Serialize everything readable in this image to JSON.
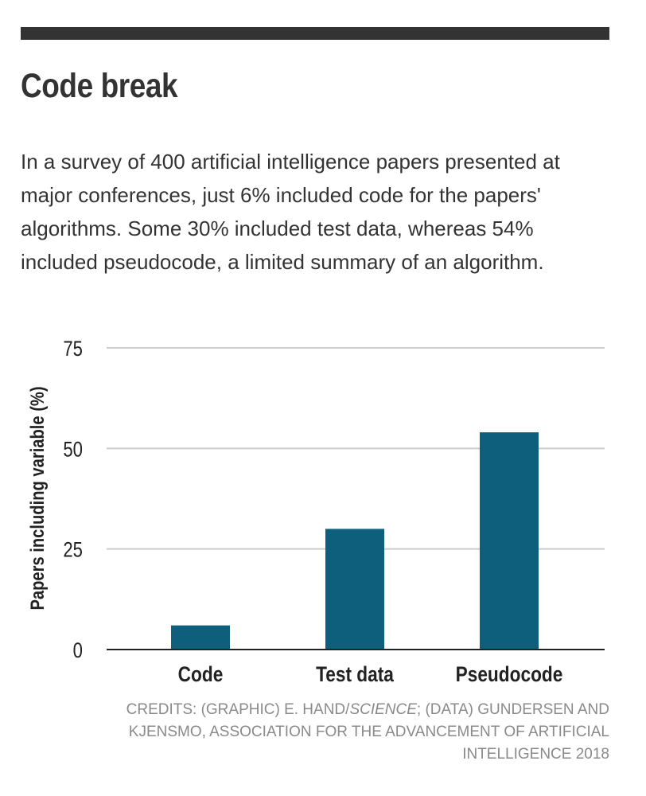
{
  "headline": "Code break",
  "description": "In a survey of 400 artificial intelligence papers presented at major conferences, just 6% included code for the papers' algorithms. Some 30% included test data, whereas 54% included pseudocode, a limited summary of an algorithm.",
  "credits": {
    "prefix": "CREDITS: (GRAPHIC) E. HAND/",
    "italic": "SCIENCE",
    "suffix": "; (DATA) GUNDERSEN AND KJENSMO, ASSOCIATION FOR THE ADVANCEMENT OF ARTIFICIAL INTELLIGENCE 2018"
  },
  "colors": {
    "bar": "#0e5f7c",
    "grid": "#cccccc",
    "axis": "#222222",
    "text": "#333333",
    "credits": "#8a8a8a"
  },
  "chart_data": {
    "type": "bar",
    "categories": [
      "Code",
      "Test data",
      "Pseudocode"
    ],
    "values": [
      6,
      30,
      54
    ],
    "title": "",
    "xlabel": "",
    "ylabel": "Papers including variable (%)",
    "ylim": [
      0,
      75
    ],
    "yticks": [
      0,
      25,
      50,
      75
    ],
    "grid": true,
    "legend": "none"
  }
}
